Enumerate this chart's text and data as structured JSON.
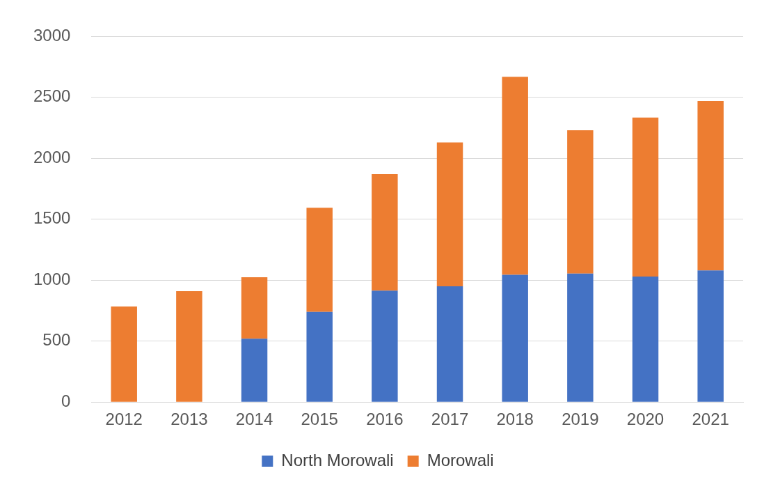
{
  "chart_data": {
    "type": "bar",
    "stacked": true,
    "categories": [
      "2012",
      "2013",
      "2014",
      "2015",
      "2016",
      "2017",
      "2018",
      "2019",
      "2020",
      "2021"
    ],
    "series": [
      {
        "name": "North Morowali",
        "color": "#4472c4",
        "values": [
          0,
          0,
          520,
          740,
          915,
          950,
          1045,
          1055,
          1030,
          1080
        ]
      },
      {
        "name": "Morowali",
        "color": "#ed7d31",
        "values": [
          785,
          910,
          505,
          855,
          955,
          1180,
          1625,
          1175,
          1305,
          1390
        ]
      }
    ],
    "ylim": [
      0,
      3000
    ],
    "yticks": [
      0,
      500,
      1000,
      1500,
      2000,
      2500,
      3000
    ],
    "grid": "y",
    "legend": "bottom"
  }
}
